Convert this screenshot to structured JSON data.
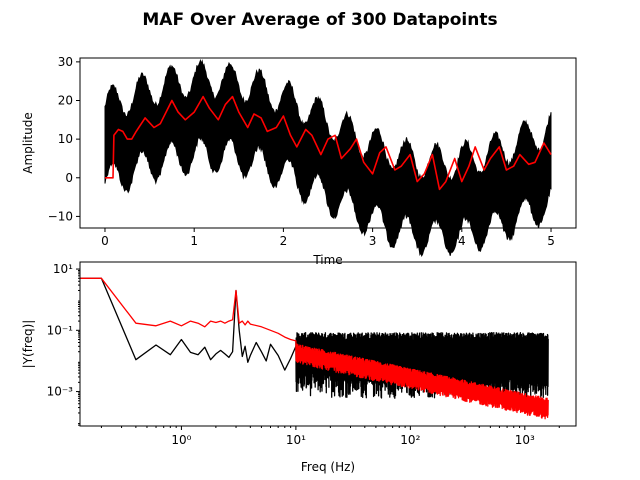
{
  "figure": {
    "title": "MAF Over Average of 300 Datapoints"
  },
  "chart_data": [
    {
      "type": "line",
      "subplot": "top",
      "xlabel": "Time",
      "ylabel": "Amplitude",
      "xlim": [
        -0.28,
        5.28
      ],
      "ylim": [
        -13,
        31
      ],
      "xticks": [
        0,
        1,
        2,
        3,
        4,
        5
      ],
      "xtick_labels": [
        "0",
        "1",
        "2",
        "3",
        "4",
        "5"
      ],
      "yticks": [
        -10,
        0,
        10,
        20,
        30
      ],
      "ytick_labels": [
        "−10",
        "0",
        "10",
        "20",
        "30"
      ],
      "grid": false,
      "series": [
        {
          "color": "#000000",
          "description_values": {
            "time_range": [
              0,
              5
            ],
            "oscillation_period": 0.33,
            "envelope_max_approx": 30,
            "envelope_min_approx": -12
          }
        },
        {
          "color": "#ff0000",
          "x": [
            0,
            0.09,
            0.09,
            0.1,
            0.15,
            0.2,
            0.25,
            0.3,
            0.35,
            0.45,
            0.55,
            0.62,
            0.75,
            0.82,
            0.9,
            1.0,
            1.1,
            1.17,
            1.27,
            1.35,
            1.43,
            1.5,
            1.6,
            1.67,
            1.75,
            1.82,
            1.92,
            2.0,
            2.08,
            2.15,
            2.25,
            2.32,
            2.42,
            2.5,
            2.58,
            2.65,
            2.75,
            2.82,
            2.9,
            3.0,
            3.08,
            3.15,
            3.25,
            3.32,
            3.42,
            3.5,
            3.58,
            3.67,
            3.75,
            3.82,
            3.92,
            4.0,
            4.08,
            4.15,
            4.25,
            4.32,
            4.42,
            4.5,
            4.58,
            4.65,
            4.75,
            4.82,
            4.92,
            5.0
          ],
          "y": [
            0,
            0,
            0,
            11,
            12.5,
            12,
            10,
            10,
            12,
            15.5,
            13,
            14,
            20,
            17,
            15,
            17,
            21,
            18,
            15,
            19,
            21,
            17,
            13,
            16.5,
            15.5,
            12,
            13,
            16,
            11,
            8,
            12.5,
            11,
            6,
            10,
            11,
            5,
            7.5,
            10,
            4,
            1,
            6.5,
            8,
            2,
            3,
            6,
            -1,
            1,
            6,
            -3,
            -1,
            5,
            -1,
            3,
            8,
            2,
            5,
            8,
            2,
            3,
            6,
            3.5,
            4,
            9,
            6
          ]
        }
      ]
    },
    {
      "type": "line",
      "subplot": "bottom",
      "xlabel": "Freq (Hz)",
      "ylabel": "|Y(freq)|",
      "xscale": "log",
      "yscale": "log",
      "xlim": [
        0.13,
        2800
      ],
      "ylim": [
        7.5e-05,
        17
      ],
      "xticks": [
        1,
        10,
        100,
        1000
      ],
      "xtick_labels": [
        "10⁰",
        "10¹",
        "10²",
        "10³"
      ],
      "yticks": [
        10,
        0.1,
        0.001
      ],
      "ytick_labels": [
        "10¹",
        "10⁻¹",
        "10⁻³"
      ],
      "grid": false,
      "series": [
        {
          "color": "#000000",
          "x": [
            0.13,
            0.2,
            0.4,
            0.6,
            0.8,
            1.0,
            1.2,
            1.4,
            1.6,
            1.8,
            2.0,
            2.2,
            2.4,
            2.6,
            2.8,
            3.0,
            3.2,
            3.4,
            3.6,
            3.8,
            4.0,
            4.5,
            5,
            5.5,
            6,
            7,
            8,
            9,
            10
          ],
          "y": [
            5,
            5,
            0.011,
            0.033,
            0.016,
            0.05,
            0.019,
            0.016,
            0.028,
            0.011,
            0.017,
            0.022,
            0.017,
            0.013,
            0.02,
            2.0,
            0.1,
            0.014,
            0.03,
            0.009,
            0.015,
            0.04,
            0.02,
            0.01,
            0.035,
            0.015,
            0.005,
            0.012,
            0.03
          ],
          "noise_band": {
            "x_range": [
              10,
              1600
            ],
            "upper_approx": 0.08,
            "lower_approx": 0.001
          }
        },
        {
          "color": "#ff0000",
          "x": [
            0.13,
            0.2,
            0.4,
            0.6,
            0.8,
            1.0,
            1.2,
            1.4,
            1.6,
            1.8,
            2.0,
            2.2,
            2.4,
            2.6,
            2.8,
            3.0,
            3.2,
            3.4,
            3.6,
            3.8,
            4.0,
            5,
            6,
            7,
            8,
            9,
            10
          ],
          "y": [
            5,
            5,
            0.17,
            0.14,
            0.2,
            0.14,
            0.2,
            0.17,
            0.13,
            0.2,
            0.18,
            0.2,
            0.17,
            0.2,
            0.22,
            2.0,
            0.17,
            0.2,
            0.15,
            0.2,
            0.16,
            0.13,
            0.1,
            0.08,
            0.06,
            0.05,
            0.045
          ],
          "decay_band": {
            "x_range": [
              10,
              1600
            ],
            "start_level": 0.03,
            "end_upper": 0.0005,
            "end_lower": 0.00015
          }
        }
      ]
    }
  ]
}
